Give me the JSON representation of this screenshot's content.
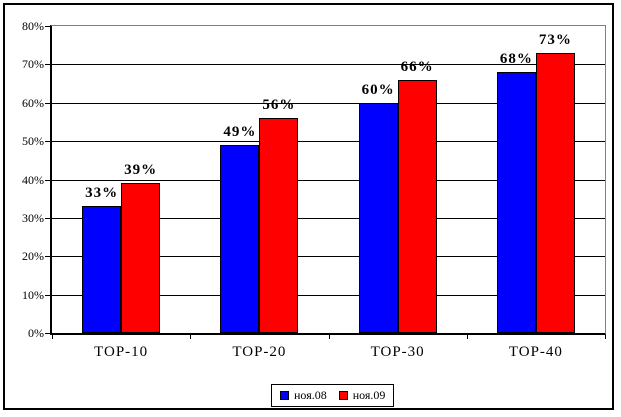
{
  "chart_data": {
    "type": "bar",
    "title": "",
    "xlabel": "",
    "ylabel": "",
    "categories": [
      "TOP-10",
      "TOP-20",
      "TOP-30",
      "TOP-40"
    ],
    "series": [
      {
        "name": "ноя.08",
        "color": "#0000FF",
        "values": [
          33,
          49,
          60,
          68
        ]
      },
      {
        "name": "ноя.09",
        "color": "#FF0000",
        "values": [
          39,
          56,
          66,
          73
        ]
      }
    ],
    "data_labels": [
      [
        "33%",
        "49%",
        "60%",
        "68%"
      ],
      [
        "39%",
        "56%",
        "66%",
        "73%"
      ]
    ],
    "ylim": [
      0,
      80
    ],
    "ytick_step": 10,
    "ytick_labels": [
      "0%",
      "10%",
      "20%",
      "30%",
      "40%",
      "50%",
      "60%",
      "70%",
      "80%"
    ],
    "grid": "horizontal",
    "legend_position": "bottom",
    "colors": {
      "bar_outline": "#000000",
      "gridline": "#000000",
      "plot_border": "#808080",
      "axis": "#000000",
      "background": "#ffffff",
      "text": "#000000"
    }
  }
}
